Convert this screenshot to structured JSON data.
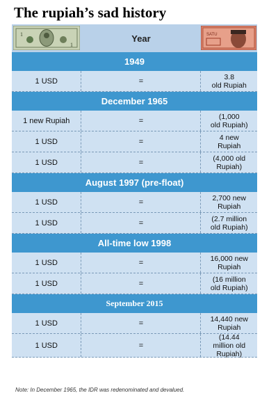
{
  "title": "The rupiah’s sad history",
  "header": {
    "year_label": "Year",
    "left_image": "us-one-dollar-bill",
    "right_image": "indonesian-rupiah-banknote"
  },
  "sections": [
    {
      "label": "1949",
      "rows": [
        {
          "left": "1 USD",
          "mid": "=",
          "right": "3.8\nold Rupiah"
        }
      ]
    },
    {
      "label": "December 1965",
      "rows": [
        {
          "left": "1 new Rupiah",
          "mid": "=",
          "right": "(1,000\nold Rupiah)"
        },
        {
          "left": "1 USD",
          "mid": "=",
          "right": "4 new\nRupiah"
        },
        {
          "left": "1 USD",
          "mid": "=",
          "right": "(4,000 old\nRupiah)"
        }
      ]
    },
    {
      "label": "August 1997 (pre-float)",
      "rows": [
        {
          "left": "1 USD",
          "mid": "=",
          "right": "2,700 new\nRupiah"
        },
        {
          "left": "1 USD",
          "mid": "=",
          "right": "(2.7 million\nold Rupiah)"
        }
      ]
    },
    {
      "label": "All-time low 1998",
      "rows": [
        {
          "left": "1 USD",
          "mid": "=",
          "right": "16,000 new\nRupiah"
        },
        {
          "left": "1 USD",
          "mid": "=",
          "right": "(16 million\nold Rupiah)"
        }
      ]
    },
    {
      "label": "September 2015",
      "rows": [
        {
          "left": "1 USD",
          "mid": "=",
          "right": "14,440 new\nRupiah"
        },
        {
          "left": "1 USD",
          "mid": "=",
          "right": "(14.44\nmillion old\nRupiah)"
        }
      ]
    }
  ],
  "note": "Note: In December 1965, the IDR was redenominated and devalued.",
  "colors": {
    "section_bg": "#3e97cf",
    "row_bg": "#cfe1f2",
    "header_bg": "#b9d1e9"
  }
}
